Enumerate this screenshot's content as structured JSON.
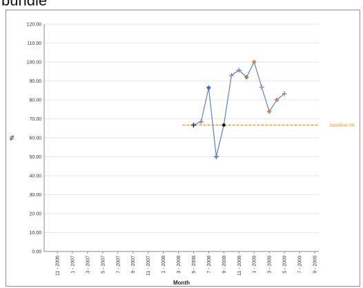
{
  "page": {
    "heading": "bundle"
  },
  "chart_data": {
    "type": "line",
    "title": "",
    "xlabel": "Month",
    "ylabel": "%",
    "ylim": [
      0,
      120
    ],
    "y_ticks": [
      "0.00",
      "10.00",
      "20.00",
      "30.00",
      "40.00",
      "50.00",
      "60.00",
      "70.00",
      "80.00",
      "90.00",
      "100.00",
      "110.00",
      "120.00"
    ],
    "categories": [
      "11 - 2006",
      "1 - 2007",
      "3 - 2007",
      "5 - 2007",
      "7 - 2007",
      "9 - 2007",
      "11 - 2007",
      "1 - 2008",
      "3 - 2008",
      "5 - 2008",
      "7 - 2008",
      "9 - 2008",
      "11 - 2008",
      "1 - 2009",
      "3 - 2009",
      "5 - 2009",
      "7 - 2009",
      "9 - 2009"
    ],
    "series": [
      {
        "color": "#5b7fd4",
        "points": [
          {
            "x": "5 - 2008",
            "y": 66.7,
            "marker": "plus",
            "color": "#1f3a7a"
          },
          {
            "x": "6 - 2008",
            "y": 68.5,
            "marker": "plus",
            "color": "#8080c0"
          },
          {
            "x": "7 - 2008",
            "y": 86.4,
            "marker": "diamond",
            "color": "#3b6fc4"
          },
          {
            "x": "8 - 2008",
            "y": 50.0,
            "marker": "plus",
            "color": "#4a74c8"
          },
          {
            "x": "9 - 2008",
            "y": 66.7,
            "marker": "dot",
            "color": "#111111"
          },
          {
            "x": "10 - 2008",
            "y": 92.9,
            "marker": "plus",
            "color": "#8c8cb0"
          },
          {
            "x": "11 - 2008",
            "y": 95.7,
            "marker": "plus",
            "color": "#8c8cb0"
          },
          {
            "x": "12 - 2008",
            "y": 92.0,
            "marker": "diamond",
            "color": "#a08070"
          },
          {
            "x": "1 - 2009",
            "y": 100.0,
            "marker": "diamond",
            "color": "#c88a60"
          },
          {
            "x": "2 - 2009",
            "y": 86.7,
            "marker": "plus",
            "color": "#9c8cb0"
          },
          {
            "x": "3 - 2009",
            "y": 73.9,
            "marker": "diamond",
            "color": "#c88a60"
          },
          {
            "x": "4 - 2009",
            "y": 80.0,
            "marker": "diamond",
            "color": "#c88a60"
          },
          {
            "x": "5 - 2009",
            "y": 83.3,
            "marker": "plus",
            "color": "#9c8cb0"
          }
        ]
      }
    ],
    "baseline": {
      "label": "baseline 66.",
      "value": 66.7,
      "from": "5 - 2008",
      "color": "#f0a030"
    },
    "grid": true
  }
}
